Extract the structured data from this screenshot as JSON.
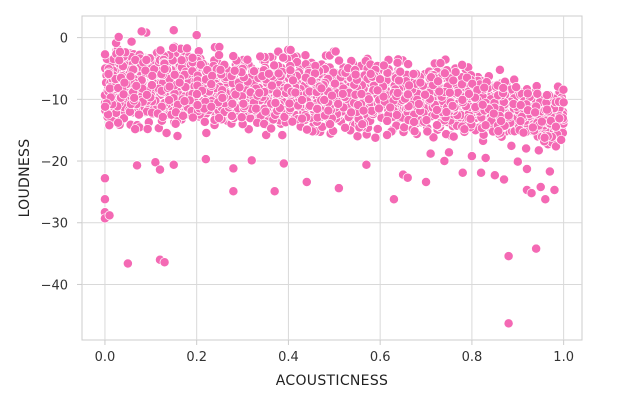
{
  "chart_data": {
    "type": "scatter",
    "xlabel": "ACOUSTICNESS",
    "ylabel": "LOUDNESS",
    "xlim": [
      -0.05,
      1.04
    ],
    "ylim": [
      -49,
      3.5
    ],
    "x_ticks": [
      0.0,
      0.2,
      0.4,
      0.6,
      0.8,
      1.0
    ],
    "x_tick_labels": [
      "0.0",
      "0.2",
      "0.4",
      "0.6",
      "0.8",
      "1.0"
    ],
    "y_ticks": [
      0,
      -10,
      -20,
      -30,
      -40
    ],
    "y_tick_labels": [
      "0",
      "−10",
      "−20",
      "−30",
      "−40"
    ],
    "grid": true,
    "color": "#f469b4",
    "marker_edge": "#ffffff",
    "points": [
      [
        0.0,
        -22.8
      ],
      [
        0.0,
        -26.2
      ],
      [
        0.0,
        -28.3
      ],
      [
        0.0,
        -29.3
      ],
      [
        0.01,
        -28.8
      ],
      [
        0.05,
        -36.6
      ],
      [
        0.12,
        -36.0
      ],
      [
        0.13,
        -36.4
      ],
      [
        0.07,
        -20.7
      ],
      [
        0.11,
        -20.2
      ],
      [
        0.12,
        -21.4
      ],
      [
        0.15,
        -20.6
      ],
      [
        0.22,
        -19.7
      ],
      [
        0.28,
        -24.9
      ],
      [
        0.28,
        -21.2
      ],
      [
        0.32,
        -19.9
      ],
      [
        0.37,
        -24.9
      ],
      [
        0.39,
        -20.4
      ],
      [
        0.44,
        -23.4
      ],
      [
        0.51,
        -24.4
      ],
      [
        0.57,
        -20.6
      ],
      [
        0.63,
        -26.2
      ],
      [
        0.65,
        -22.2
      ],
      [
        0.66,
        -22.7
      ],
      [
        0.7,
        -23.4
      ],
      [
        0.74,
        -20.0
      ],
      [
        0.78,
        -21.9
      ],
      [
        0.82,
        -21.9
      ],
      [
        0.85,
        -22.3
      ],
      [
        0.87,
        -23.0
      ],
      [
        0.88,
        -35.4
      ],
      [
        0.88,
        -46.3
      ],
      [
        0.92,
        -24.7
      ],
      [
        0.93,
        -25.2
      ],
      [
        0.94,
        -34.2
      ],
      [
        0.95,
        -24.2
      ],
      [
        0.96,
        -26.2
      ],
      [
        0.98,
        -24.7
      ],
      [
        0.09,
        0.8
      ],
      [
        0.08,
        1.0
      ],
      [
        0.15,
        1.2
      ],
      [
        0.2,
        0.4
      ],
      [
        0.03,
        0.1
      ],
      [
        0.71,
        -18.8
      ],
      [
        0.75,
        -18.6
      ],
      [
        0.8,
        -19.2
      ],
      [
        0.83,
        -19.5
      ],
      [
        0.9,
        -20.1
      ],
      [
        0.92,
        -21.3
      ],
      [
        0.97,
        -21.7
      ],
      [
        0.99,
        -10.4
      ],
      [
        1.0,
        -10.5
      ]
    ],
    "dense_band": {
      "x_range": [
        0.0,
        1.0
      ],
      "upper_edge": [
        [
          0.0,
          -0.5
        ],
        [
          0.2,
          -1.0
        ],
        [
          0.4,
          -2.0
        ],
        [
          0.6,
          -2.5
        ],
        [
          0.8,
          -4.0
        ],
        [
          1.0,
          -7.5
        ]
      ],
      "lower_edge": [
        [
          0.0,
          -17.5
        ],
        [
          0.2,
          -18.0
        ],
        [
          0.4,
          -18.5
        ],
        [
          0.6,
          -18.5
        ],
        [
          0.8,
          -19.0
        ],
        [
          1.0,
          -21.5
        ]
      ]
    }
  }
}
